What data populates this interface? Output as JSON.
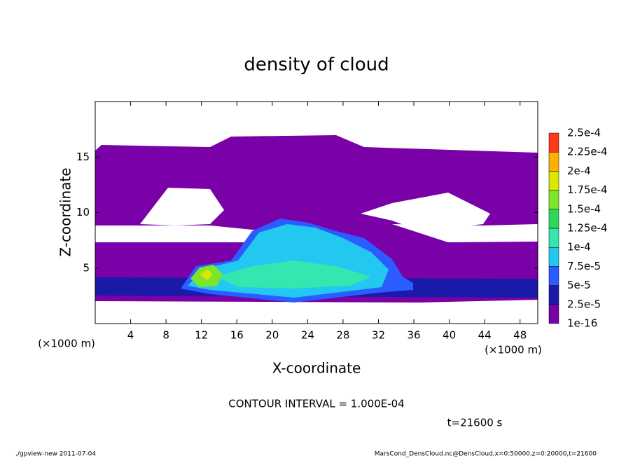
{
  "chart_data": {
    "type": "contour",
    "title": "density of cloud",
    "xlabel": "X-coordinate",
    "ylabel": "Z-coordinate",
    "x_unit_label": "(×1000 m)",
    "xlim": [
      0,
      50
    ],
    "xticks": [
      4,
      8,
      12,
      16,
      20,
      24,
      28,
      32,
      36,
      40,
      44,
      48
    ],
    "ylim": [
      0,
      20
    ],
    "yticks": [
      5,
      10,
      15
    ],
    "colorbar_levels": [
      {
        "value": 1e-16,
        "label": "1e-16"
      },
      {
        "value": 2.5e-05,
        "label": "2.5e-5"
      },
      {
        "value": 5e-05,
        "label": "5e-5"
      },
      {
        "value": 7.5e-05,
        "label": "7.5e-5"
      },
      {
        "value": 0.0001,
        "label": "1e-4"
      },
      {
        "value": 0.000125,
        "label": "1.25e-4"
      },
      {
        "value": 0.00015,
        "label": "1.5e-4"
      },
      {
        "value": 0.000175,
        "label": "1.75e-4"
      },
      {
        "value": 0.0002,
        "label": "2e-4"
      },
      {
        "value": 0.000225,
        "label": "2.25e-4"
      },
      {
        "value": 0.00025,
        "label": "2.5e-4"
      }
    ],
    "colorbar_colors": [
      "#7a00a8",
      "#1a1aa8",
      "#2a5cff",
      "#22c8f0",
      "#35e6b0",
      "#2fd85a",
      "#7ee52a",
      "#d8e800",
      "#ffb000",
      "#ff3a1a"
    ],
    "contour_interval": "CONTOUR INTERVAL = 1.000E-04",
    "time": "t=21600 s",
    "footer_left": "./gpview-new  2011-07-04",
    "footer_right": "MarsCond_DensCloud.nc@DensCloud,x=0:50000,z=0:20000,t=21600"
  }
}
